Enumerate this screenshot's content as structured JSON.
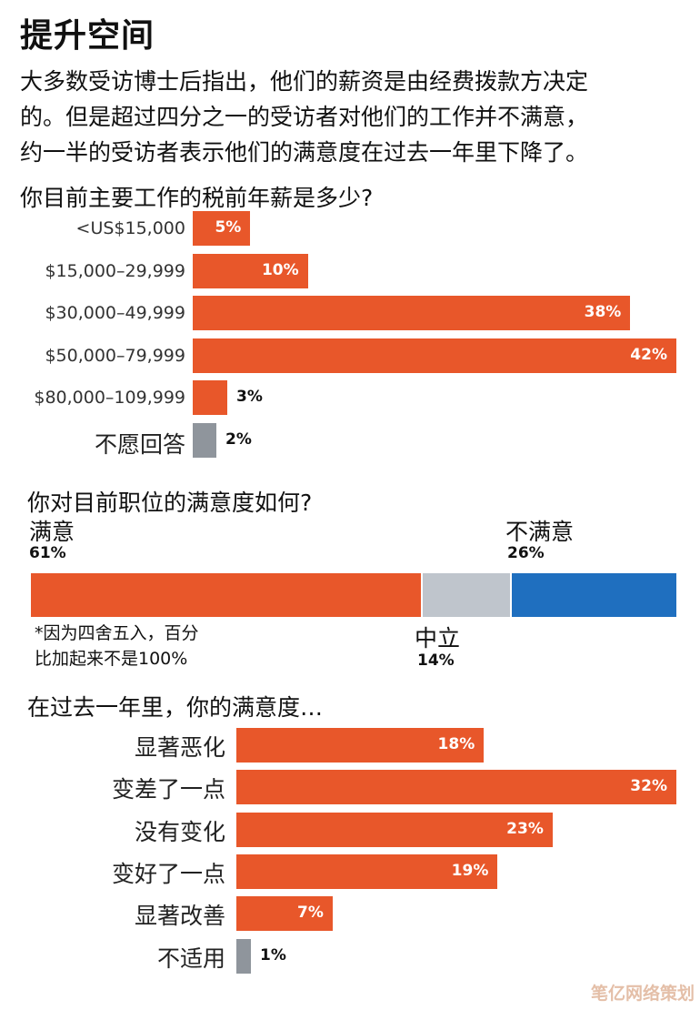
{
  "title": "提升空间",
  "intro": [
    "大多数受访博士后指出，他们的薪资是由经费拨款方决定",
    "的。但是超过四分之一的受访者对他们的工作并不满意，",
    "约一半的受访者表示他们的满意度在过去一年里下降了。"
  ],
  "colors": {
    "orange": "#e8572a",
    "grey_bar": "#8f959c",
    "neutral": "#bfc5cc",
    "blue": "#1f6fbf"
  },
  "watermark": "笔亿网络策划",
  "chart_data": [
    {
      "type": "bar",
      "orientation": "horizontal",
      "title": "你目前主要工作的税前年薪是多少?",
      "categories": [
        "<US$15,000",
        "$15,000–29,999",
        "$30,000–49,999",
        "$50,000–79,999",
        "$80,000–109,999",
        "不愿回答"
      ],
      "values": [
        5,
        10,
        38,
        42,
        3,
        2
      ],
      "labels": [
        "5%",
        "10%",
        "38%",
        "42%",
        "3%",
        "2%"
      ],
      "xlim": [
        0,
        42
      ],
      "grid": false
    },
    {
      "type": "bar",
      "orientation": "horizontal-stacked",
      "title": "你对目前职位的满意度如何?",
      "segments": [
        {
          "label": "满意",
          "value": 61,
          "pct": "61%"
        },
        {
          "label": "中立",
          "value": 14,
          "pct": "14%"
        },
        {
          "label": "不满意",
          "value": 26,
          "pct": "26%"
        }
      ],
      "note": [
        "*因为四舍五入，百分",
        "比加起来不是100%"
      ]
    },
    {
      "type": "bar",
      "orientation": "horizontal",
      "title": "在过去一年里，你的满意度…",
      "categories": [
        "显著恶化",
        "变差了一点",
        "没有变化",
        "变好了一点",
        "显著改善",
        "不适用"
      ],
      "values": [
        18,
        32,
        23,
        19,
        7,
        1
      ],
      "labels": [
        "18%",
        "32%",
        "23%",
        "19%",
        "7%",
        "1%"
      ],
      "xlim": [
        0,
        32
      ],
      "grid": false
    }
  ]
}
